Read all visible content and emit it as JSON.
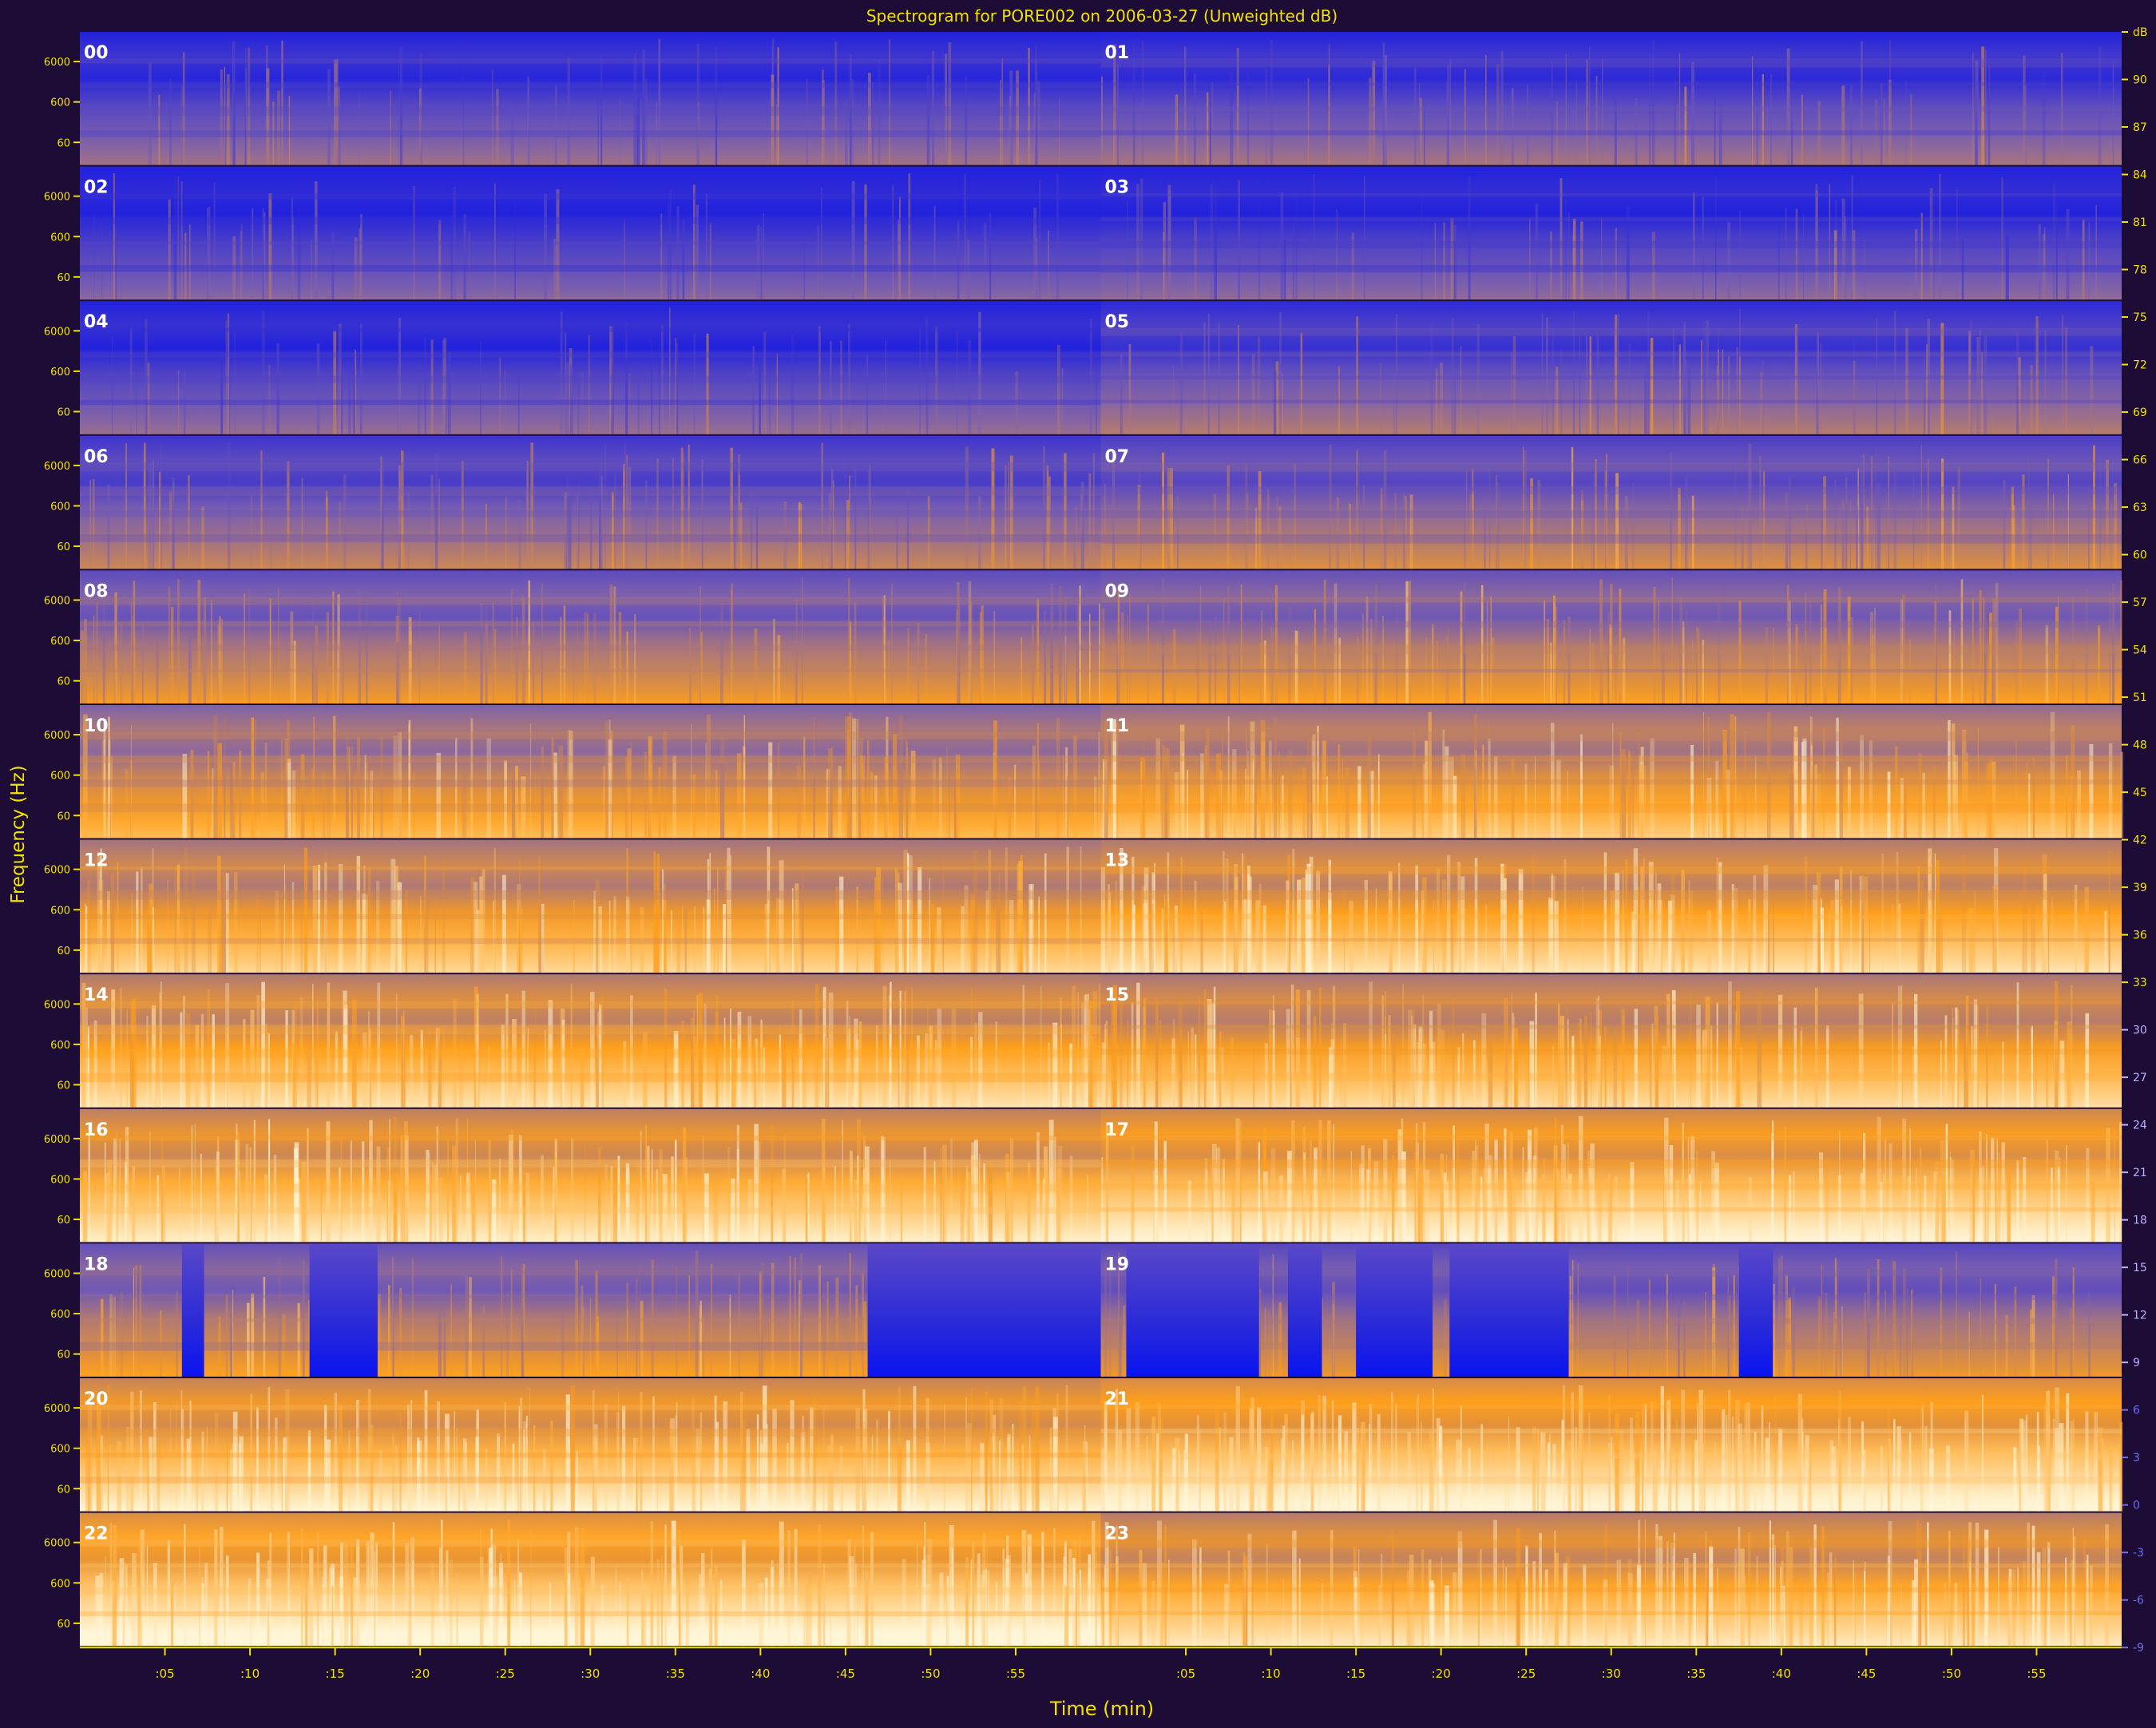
{
  "chart_data": {
    "type": "heatmap",
    "title": "Spectrogram for PORE002 on 2006-03-27 (Unweighted dB)",
    "xlabel": "Time (min)",
    "ylabel": "Frequency (Hz)",
    "x_tick_labels": [
      ":05",
      ":10",
      ":15",
      ":20",
      ":25",
      ":30",
      ":35",
      ":40",
      ":45",
      ":50",
      ":55"
    ],
    "y_tick_labels": [
      "6000",
      "600",
      "60",
      "60"
    ],
    "hour_labels": [
      "00",
      "01",
      "02",
      "03",
      "04",
      "05",
      "06",
      "07",
      "08",
      "09",
      "10",
      "11",
      "12",
      "13",
      "14",
      "15",
      "16",
      "17",
      "18",
      "19",
      "20",
      "21",
      "22",
      "23"
    ],
    "colorbar": {
      "unit": "dB",
      "tick_labels": [
        "dB",
        "90",
        "87",
        "84",
        "81",
        "78",
        "75",
        "72",
        "69",
        "66",
        "63",
        "60",
        "57",
        "54",
        "51",
        "48",
        "45",
        "42",
        "39",
        "36",
        "33",
        "30",
        "27",
        "24",
        "21",
        "18",
        "15",
        "12",
        "9",
        "6",
        "3",
        "0",
        "-3",
        "-6",
        "-9"
      ]
    },
    "hour_mean_loudness": [
      0.28,
      0.3,
      0.22,
      0.24,
      0.26,
      0.34,
      0.4,
      0.45,
      0.52,
      0.55,
      0.64,
      0.7,
      0.74,
      0.78,
      0.78,
      0.76,
      0.82,
      0.86,
      0.55,
      0.5,
      0.84,
      0.88,
      0.9,
      0.8
    ],
    "quiet_blocks": [
      {
        "hour": "18",
        "from_min": 6,
        "to_min": 7.3
      },
      {
        "hour": "18",
        "from_min": 13.5,
        "to_min": 17.5
      },
      {
        "hour": "18",
        "from_min": 46.3,
        "to_min": 60
      },
      {
        "hour": "19",
        "from_min": 1.5,
        "to_min": 9.3
      },
      {
        "hour": "19",
        "from_min": 11,
        "to_min": 13
      },
      {
        "hour": "19",
        "from_min": 15,
        "to_min": 19.5
      },
      {
        "hour": "19",
        "from_min": 20.5,
        "to_min": 27.5
      },
      {
        "hour": "19",
        "from_min": 37.5,
        "to_min": 39.5
      }
    ],
    "colors": {
      "background": "#1d0c36",
      "low": "#2222dd",
      "mid": "#7a5fb0",
      "high": "#ff9f1a",
      "peak": "#fff6d8",
      "axis_text": "#f2e200"
    },
    "grid": false,
    "legend": "colorbar-right"
  }
}
